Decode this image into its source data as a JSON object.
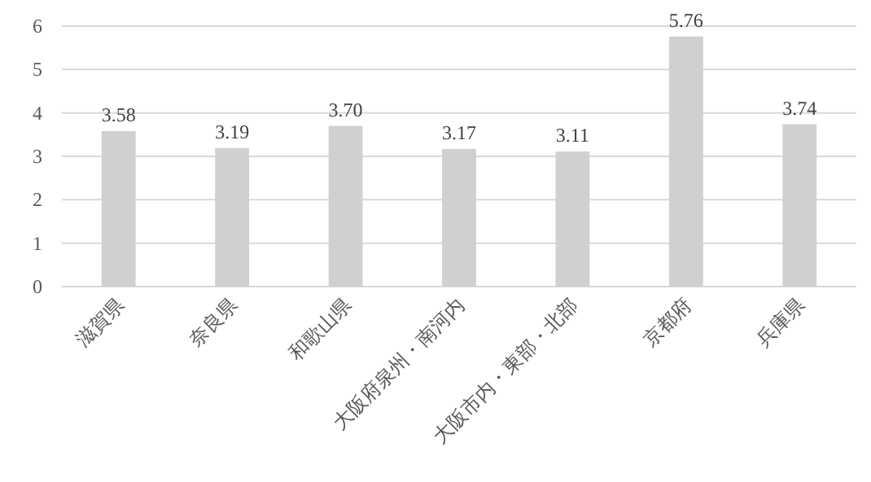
{
  "chart_data": {
    "type": "bar",
    "categories": [
      "滋賀県",
      "奈良県",
      "和歌山県",
      "大阪府泉州・南河内",
      "大阪市内・東部・北部",
      "京都府",
      "兵庫県"
    ],
    "values": [
      3.58,
      3.19,
      3.7,
      3.17,
      3.11,
      5.76,
      3.74
    ],
    "value_labels": [
      "3.58",
      "3.19",
      "3.70",
      "3.17",
      "3.11",
      "5.76",
      "3.74"
    ],
    "color": "#d0d0d0",
    "ylim": [
      0,
      6
    ],
    "yticks": [
      0,
      1,
      2,
      3,
      4,
      5,
      6
    ],
    "grid": "y"
  }
}
